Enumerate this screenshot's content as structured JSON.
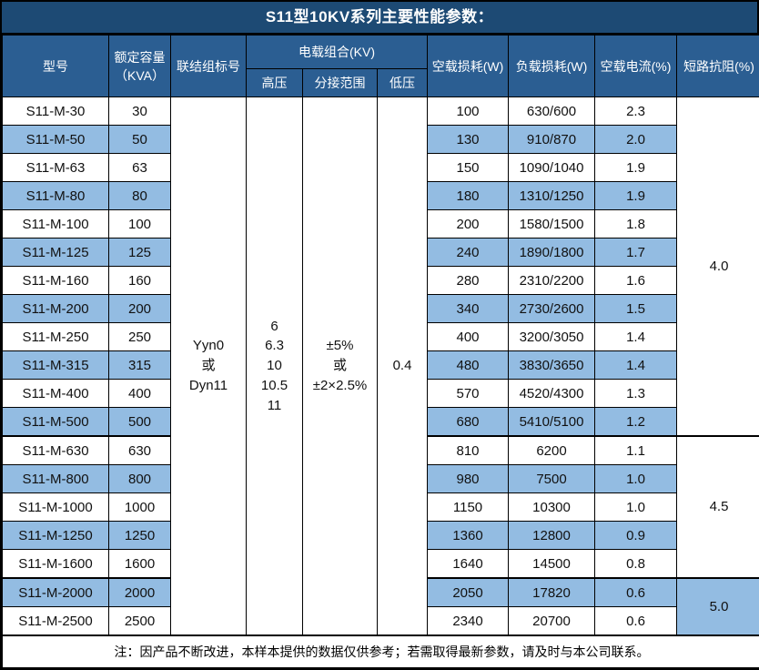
{
  "title": "S11型10KV系列主要性能参数：",
  "header": {
    "model": "型号",
    "capacity_line1": "额定容量",
    "capacity_line2": "（KVA）",
    "connection": "联结组标号",
    "voltage_group": "电载组合(KV)",
    "hv": "高压",
    "tap_range": "分接范围",
    "lv": "低压",
    "no_load_loss": "空载损耗(W)",
    "load_loss": "负载损耗(W)",
    "no_load_current": "空载电流(%)",
    "impedance": "短路抗阻(%)"
  },
  "merged_cells": {
    "connection_lines": [
      "Yyn0",
      "或",
      "Dyn11"
    ],
    "hv_lines": [
      "6",
      "6.3",
      "10",
      "10.5",
      "11"
    ],
    "tap_range_lines": [
      "±5%",
      "或",
      "±2×2.5%"
    ],
    "lv": "0.4"
  },
  "rows": [
    {
      "model": "S11-M-30",
      "capacity": "30",
      "no_load_loss": "100",
      "load_loss": "630/600",
      "no_load_current": "2.3"
    },
    {
      "model": "S11-M-50",
      "capacity": "50",
      "no_load_loss": "130",
      "load_loss": "910/870",
      "no_load_current": "2.0"
    },
    {
      "model": "S11-M-63",
      "capacity": "63",
      "no_load_loss": "150",
      "load_loss": "1090/1040",
      "no_load_current": "1.9"
    },
    {
      "model": "S11-M-80",
      "capacity": "80",
      "no_load_loss": "180",
      "load_loss": "1310/1250",
      "no_load_current": "1.9"
    },
    {
      "model": "S11-M-100",
      "capacity": "100",
      "no_load_loss": "200",
      "load_loss": "1580/1500",
      "no_load_current": "1.8"
    },
    {
      "model": "S11-M-125",
      "capacity": "125",
      "no_load_loss": "240",
      "load_loss": "1890/1800",
      "no_load_current": "1.7"
    },
    {
      "model": "S11-M-160",
      "capacity": "160",
      "no_load_loss": "280",
      "load_loss": "2310/2200",
      "no_load_current": "1.6"
    },
    {
      "model": "S11-M-200",
      "capacity": "200",
      "no_load_loss": "340",
      "load_loss": "2730/2600",
      "no_load_current": "1.5"
    },
    {
      "model": "S11-M-250",
      "capacity": "250",
      "no_load_loss": "400",
      "load_loss": "3200/3050",
      "no_load_current": "1.4"
    },
    {
      "model": "S11-M-315",
      "capacity": "315",
      "no_load_loss": "480",
      "load_loss": "3830/3650",
      "no_load_current": "1.4"
    },
    {
      "model": "S11-M-400",
      "capacity": "400",
      "no_load_loss": "570",
      "load_loss": "4520/4300",
      "no_load_current": "1.3"
    },
    {
      "model": "S11-M-500",
      "capacity": "500",
      "no_load_loss": "680",
      "load_loss": "5410/5100",
      "no_load_current": "1.2"
    },
    {
      "model": "S11-M-630",
      "capacity": "630",
      "no_load_loss": "810",
      "load_loss": "6200",
      "no_load_current": "1.1"
    },
    {
      "model": "S11-M-800",
      "capacity": "800",
      "no_load_loss": "980",
      "load_loss": "7500",
      "no_load_current": "1.0"
    },
    {
      "model": "S11-M-1000",
      "capacity": "1000",
      "no_load_loss": "1150",
      "load_loss": "10300",
      "no_load_current": "1.0"
    },
    {
      "model": "S11-M-1250",
      "capacity": "1250",
      "no_load_loss": "1360",
      "load_loss": "12800",
      "no_load_current": "0.9"
    },
    {
      "model": "S11-M-1600",
      "capacity": "1600",
      "no_load_loss": "1640",
      "load_loss": "14500",
      "no_load_current": "0.8"
    },
    {
      "model": "S11-M-2000",
      "capacity": "2000",
      "no_load_loss": "2050",
      "load_loss": "17820",
      "no_load_current": "0.6"
    },
    {
      "model": "S11-M-2500",
      "capacity": "2500",
      "no_load_loss": "2340",
      "load_loss": "20700",
      "no_load_current": "0.6"
    }
  ],
  "impedance_groups": [
    {
      "value": "4.0",
      "span": 12
    },
    {
      "value": "4.5",
      "span": 5
    },
    {
      "value": "5.0",
      "span": 2
    }
  ],
  "footer_note": "注：因产品不断改进，本样本提供的数据仅供参考；若需取得最新参数，请及时与本公司联系。",
  "colors": {
    "title_bg": "#1D4A74",
    "header_bg": "#2B5E92",
    "alt_row_bg": "#93BCE2",
    "border": "#000000",
    "header_text": "#FFFFFF",
    "body_text": "#111111"
  }
}
